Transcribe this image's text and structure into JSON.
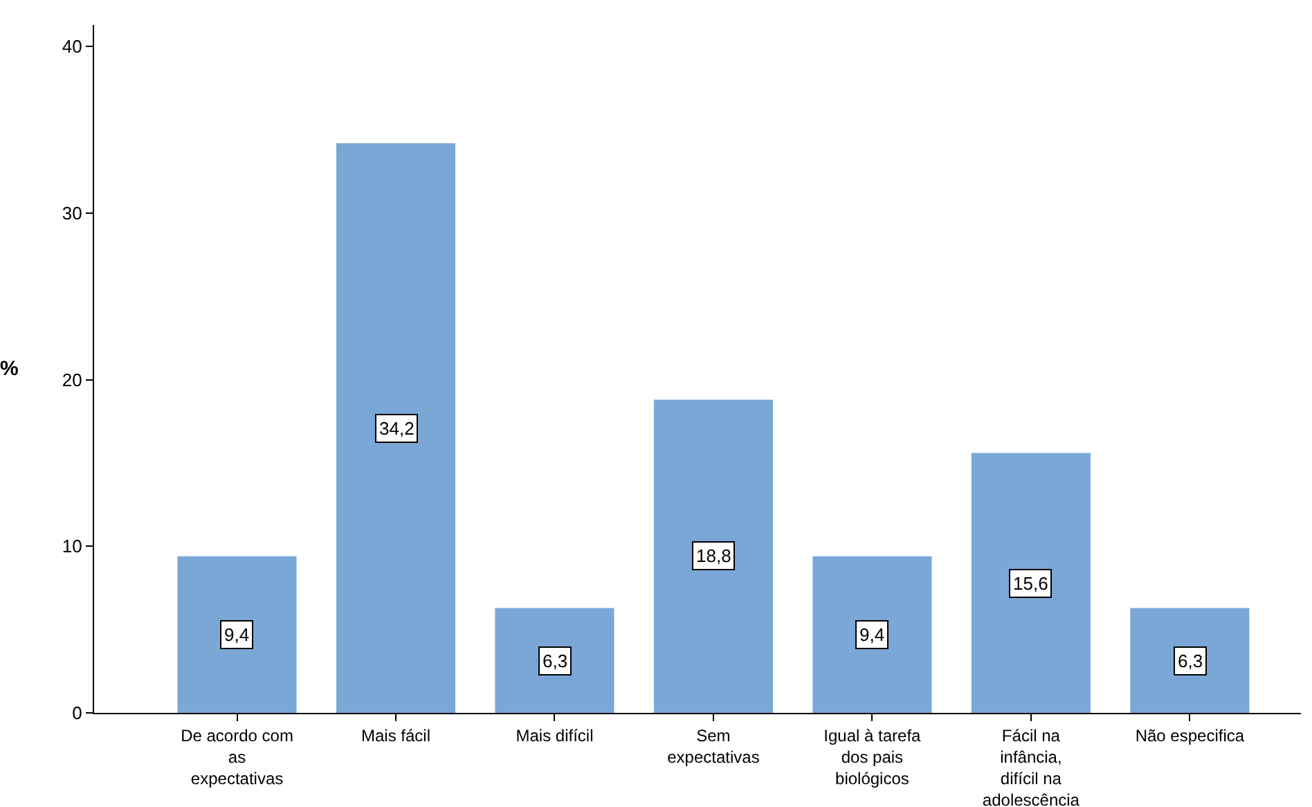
{
  "chart_data": {
    "type": "bar",
    "ylabel": "%",
    "categories": [
      "De acordo com as expectativas",
      "Mais fácil",
      "Mais difícil",
      "Sem expectativas",
      "Igual à tarefa dos pais biológicos",
      "Fácil na infância, difícil na adolescência",
      "Não especifica"
    ],
    "values": [
      9.4,
      34.2,
      6.3,
      18.8,
      9.4,
      15.6,
      6.3
    ],
    "value_labels": [
      "9,4",
      "34,2",
      "6,3",
      "18,8",
      "9,4",
      "15,6",
      "6,3"
    ],
    "color": "#7ba7d7",
    "ylim": [
      0,
      41.3
    ],
    "yticks": [
      0,
      10,
      20,
      30,
      40
    ],
    "grid": false
  }
}
